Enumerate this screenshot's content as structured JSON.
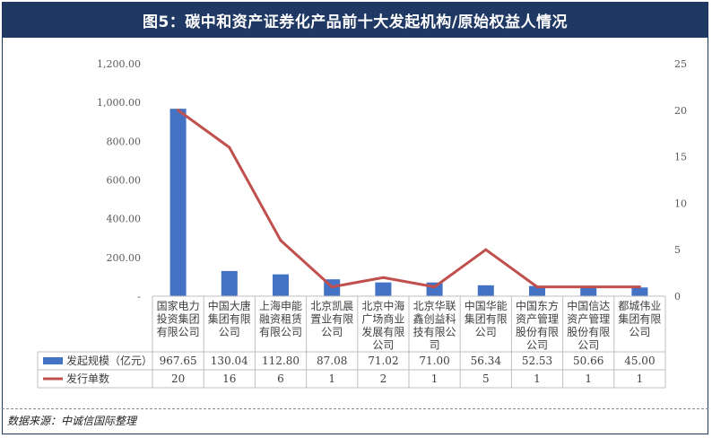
{
  "title": "图5：碳中和资产证券化产品前十大发起机构/原始权益人情况",
  "source": "数据来源：中诚信国际整理",
  "chart_data": {
    "type": "bar+line",
    "categories": [
      "国家电力投资集团有限公司",
      "中国大唐集团有限公司",
      "上海申能融资租赁有限公司",
      "北京凯晨置业有限公司",
      "北京中海广场商业发展有限公司",
      "北京华联鑫创益科技有限公司",
      "中国华能集团有限公司",
      "中国东方资产管理股份有限公司",
      "中国信达资产管理股份有限公司",
      "都城伟业集团有限公司"
    ],
    "category_lines": [
      [
        "国家电力",
        "投资集团",
        "有限公司"
      ],
      [
        "中国大唐",
        "集团有限",
        "公司"
      ],
      [
        "上海申能",
        "融资租赁",
        "有限公司"
      ],
      [
        "北京凯晨",
        "置业有限",
        "公司"
      ],
      [
        "北京中海",
        "广场商业",
        "发展有限",
        "公司"
      ],
      [
        "北京华联",
        "鑫创益科",
        "技有限公",
        "司"
      ],
      [
        "中国华能",
        "集团有限",
        "公司"
      ],
      [
        "中国东方",
        "资产管理",
        "股份有限",
        "公司"
      ],
      [
        "中国信达",
        "资产管理",
        "股份有限",
        "公司"
      ],
      [
        "都城伟业",
        "集团有限",
        "公司"
      ]
    ],
    "series": [
      {
        "name": "发起规模（亿元）",
        "type": "bar",
        "axis": "left",
        "color": "#4472c4",
        "values": [
          967.65,
          130.04,
          112.8,
          87.08,
          71.02,
          71.0,
          56.34,
          52.53,
          50.66,
          45.0
        ],
        "labels": [
          "967.65",
          "130.04",
          "112.80",
          "87.08",
          "71.02",
          "71.00",
          "56.34",
          "52.53",
          "50.66",
          "45.00"
        ]
      },
      {
        "name": "发行单数",
        "type": "line",
        "axis": "right",
        "color": "#c0504d",
        "values": [
          20,
          16,
          6,
          1,
          2,
          1,
          5,
          1,
          1,
          1
        ],
        "labels": [
          "20",
          "16",
          "6",
          "1",
          "2",
          "1",
          "5",
          "1",
          "1",
          "1"
        ]
      }
    ],
    "y_left": {
      "min": 0,
      "max": 1200,
      "ticks": [
        "-",
        "200.00",
        "400.00",
        "600.00",
        "800.00",
        "1,000.00",
        "1,200.00"
      ]
    },
    "y_right": {
      "min": 0,
      "max": 25,
      "ticks": [
        "0",
        "5",
        "10",
        "15",
        "20",
        "25"
      ]
    },
    "legend": "data-table"
  }
}
